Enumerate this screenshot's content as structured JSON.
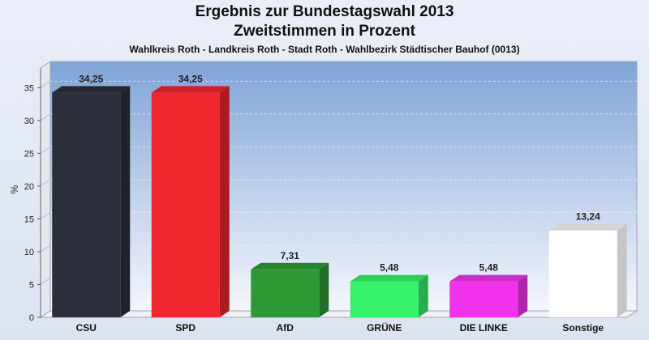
{
  "header": {
    "title_line1": "Ergebnis zur Bundestagswahl 2013",
    "title_line2": "Zweitstimmen in Prozent",
    "subtitle": "Wahlkreis Roth - Landkreis Roth - Stadt Roth - Wahlbezirk Städtischer Bauhof (0013)"
  },
  "chart_data": {
    "type": "bar",
    "categories": [
      "CSU",
      "SPD",
      "AfD",
      "GRÜNE",
      "DIE LINKE",
      "Sonstige"
    ],
    "values": [
      34.25,
      34.25,
      7.31,
      5.48,
      5.48,
      13.24
    ],
    "value_labels": [
      "34,25",
      "34,25",
      "7,31",
      "5,48",
      "5,48",
      "13,24"
    ],
    "colors": [
      "#2b2f3a",
      "#f0262f",
      "#2e9a36",
      "#35f26a",
      "#f233ee",
      "#ffffff"
    ],
    "ylabel": "%",
    "ylim": [
      0,
      38
    ],
    "yticks": [
      0,
      5,
      10,
      15,
      20,
      25,
      30,
      35
    ],
    "grid": true,
    "bar_style": "3d"
  }
}
